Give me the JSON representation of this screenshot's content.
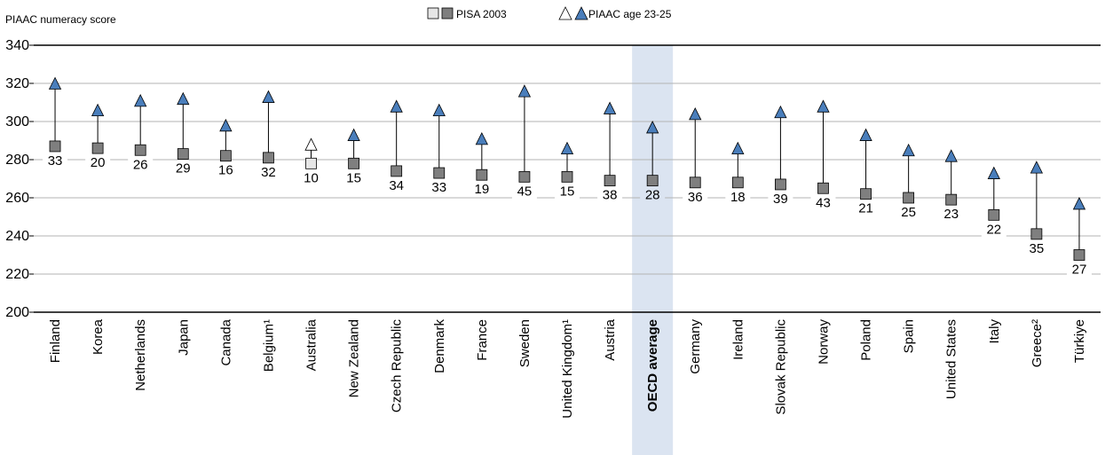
{
  "chart_data": {
    "type": "scatter",
    "ylabel": "PIAAC numeracy score",
    "ylim": [
      200,
      340
    ],
    "yticks": [
      200,
      220,
      240,
      260,
      280,
      300,
      320,
      340
    ],
    "legend": {
      "placement": "top-center",
      "entries": [
        {
          "name": "PISA 2003",
          "marker": "square"
        },
        {
          "name": "PIAAC age 23-25",
          "marker": "triangle"
        }
      ]
    },
    "colors": {
      "marker_fill": "#7f7f7f",
      "triangle_fill": "#4a7ebb",
      "highlight_band": "#dbe4f1",
      "light_marker": "#e6e6e6",
      "gridline": "#b3b3b3"
    },
    "highlight": "OECD average",
    "categories": [
      "Finland",
      "Korea",
      "Netherlands",
      "Japan",
      "Canada",
      "Belgium¹",
      "Australia",
      "New Zealand",
      "Czech Republic",
      "Denmark",
      "France",
      "Sweden",
      "United Kingdom¹",
      "Austria",
      "OECD average",
      "Germany",
      "Ireland",
      "Slovak Republic",
      "Norway",
      "Poland",
      "Spain",
      "United States",
      "Italy",
      "Greece²",
      "Türkiye"
    ],
    "series": [
      {
        "name": "PISA 2003",
        "values": [
          287,
          286,
          285,
          283,
          282,
          281,
          278,
          278,
          274,
          273,
          272,
          271,
          271,
          269,
          269,
          268,
          268,
          267,
          265,
          262,
          260,
          259,
          251,
          241,
          230
        ]
      },
      {
        "name": "PIAAC age 23-25",
        "values": [
          320,
          306,
          311,
          312,
          298,
          313,
          288,
          293,
          308,
          306,
          291,
          316,
          286,
          307,
          297,
          304,
          286,
          305,
          308,
          293,
          285,
          282,
          273,
          276,
          257
        ]
      }
    ],
    "differences": [
      33,
      20,
      26,
      29,
      16,
      32,
      10,
      15,
      34,
      33,
      19,
      45,
      15,
      38,
      28,
      36,
      18,
      39,
      43,
      21,
      25,
      23,
      22,
      35,
      27
    ],
    "light_markers": [
      "Australia"
    ]
  }
}
